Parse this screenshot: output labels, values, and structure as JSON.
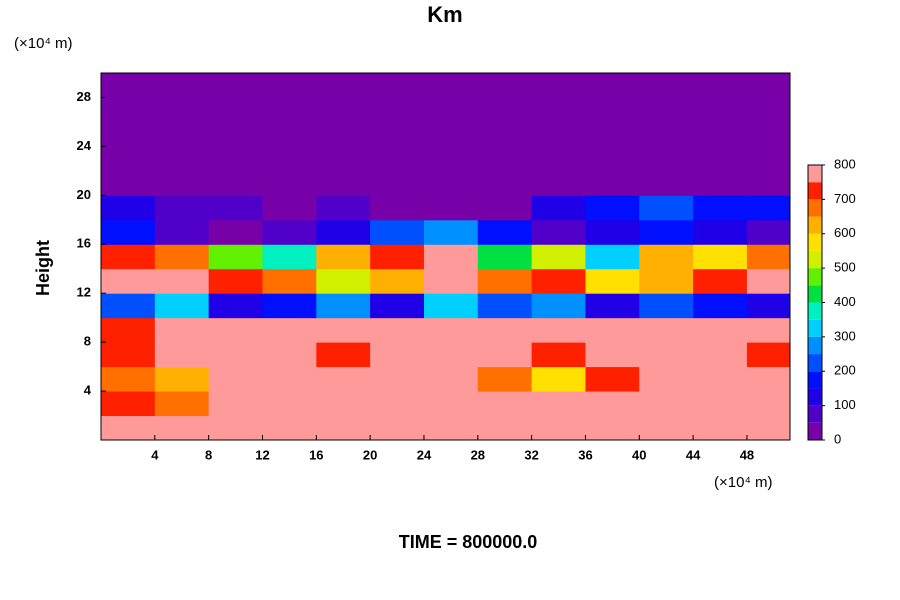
{
  "chart_data": {
    "type": "contour",
    "title": "Km",
    "ylabel": "Height",
    "xunit": "(×10⁴ m)",
    "yunit": "(×10⁴ m)",
    "footer": "TIME = 800000.0",
    "xlim": [
      0,
      51.2
    ],
    "ylim": [
      0,
      30
    ],
    "xticks": [
      4,
      8,
      12,
      16,
      20,
      24,
      28,
      32,
      36,
      40,
      44,
      48
    ],
    "yticks": [
      4,
      8,
      12,
      16,
      20,
      24,
      28
    ],
    "x": [
      2,
      6,
      10,
      14,
      18,
      22,
      26,
      30,
      34,
      38,
      42,
      46,
      50
    ],
    "y": [
      1,
      3,
      5,
      7,
      9,
      11,
      13,
      15,
      17,
      19,
      21,
      23,
      25,
      27,
      29
    ],
    "z": [
      [
        800,
        750,
        800,
        800,
        800,
        800,
        800,
        800,
        800,
        800,
        800,
        800,
        800
      ],
      [
        700,
        650,
        800,
        800,
        800,
        800,
        800,
        800,
        750,
        800,
        800,
        800,
        800
      ],
      [
        650,
        600,
        800,
        800,
        800,
        750,
        800,
        650,
        550,
        700,
        800,
        800,
        800
      ],
      [
        700,
        800,
        800,
        800,
        700,
        800,
        800,
        800,
        700,
        800,
        800,
        800,
        700
      ],
      [
        700,
        750,
        800,
        800,
        800,
        750,
        800,
        800,
        800,
        800,
        800,
        800,
        800
      ],
      [
        200,
        300,
        100,
        150,
        250,
        100,
        300,
        200,
        250,
        100,
        200,
        150,
        100
      ],
      [
        800,
        800,
        700,
        650,
        500,
        600,
        800,
        650,
        700,
        550,
        600,
        700,
        800
      ],
      [
        700,
        650,
        450,
        350,
        600,
        700,
        750,
        400,
        500,
        300,
        600,
        550,
        650
      ],
      [
        150,
        50,
        0,
        50,
        100,
        200,
        250,
        150,
        50,
        100,
        150,
        100,
        50
      ],
      [
        100,
        50,
        50,
        0,
        50,
        0,
        0,
        0,
        100,
        150,
        200,
        150,
        150
      ],
      [
        0,
        0,
        0,
        0,
        0,
        0,
        0,
        0,
        0,
        0,
        0,
        0,
        0
      ],
      [
        0,
        0,
        0,
        0,
        0,
        0,
        0,
        0,
        0,
        0,
        0,
        0,
        0
      ],
      [
        0,
        0,
        0,
        0,
        0,
        0,
        0,
        0,
        0,
        0,
        0,
        0,
        0
      ],
      [
        0,
        0,
        0,
        0,
        0,
        0,
        0,
        0,
        0,
        0,
        0,
        0,
        0
      ],
      [
        0,
        0,
        0,
        0,
        0,
        0,
        0,
        0,
        0,
        0,
        0,
        0,
        0
      ]
    ],
    "levels": [
      0,
      50,
      100,
      150,
      200,
      250,
      300,
      350,
      400,
      450,
      500,
      550,
      600,
      650,
      700,
      750,
      800
    ],
    "colors": [
      "#7800a8",
      "#5000c8",
      "#2000e6",
      "#0010ff",
      "#0050ff",
      "#0090ff",
      "#00d0ff",
      "#00f0c0",
      "#00e040",
      "#60f000",
      "#d0f000",
      "#ffe000",
      "#ffb000",
      "#ff7000",
      "#ff2000",
      "#ff9a9a"
    ],
    "colorbar_ticks": [
      0,
      100,
      200,
      300,
      400,
      500,
      600,
      700,
      800
    ]
  }
}
